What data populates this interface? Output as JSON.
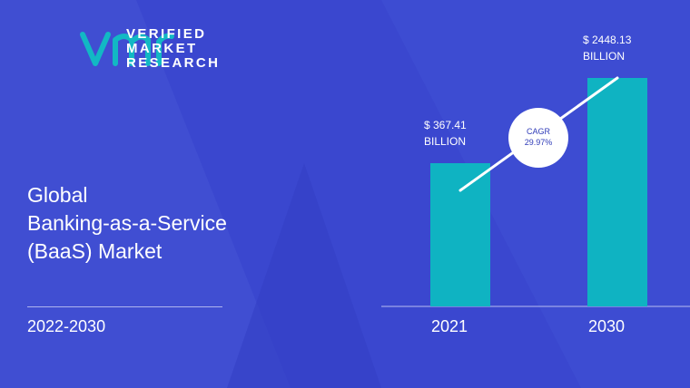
{
  "brand": {
    "name_lines": [
      "VERIFIED",
      "MARKET",
      "RESEARCH"
    ],
    "colors": {
      "background": "#3a47cf",
      "bar": "#0fb3c2",
      "logo": "#12b8c4"
    },
    "logo_icon": "vmr-logo-icon"
  },
  "title_lines": [
    "Global",
    "Banking-as-a-Service",
    "(BaaS) Market"
  ],
  "period": "2022-2030",
  "chart_data": {
    "type": "bar",
    "categories": [
      "2021",
      "2030"
    ],
    "values": [
      367.41,
      2448.13
    ],
    "value_labels": [
      [
        "$ 367.41",
        "BILLION"
      ],
      [
        "$ 2448.13",
        "BILLION"
      ]
    ],
    "cagr_label": [
      "CAGR",
      "29.97%"
    ],
    "grid": false
  }
}
